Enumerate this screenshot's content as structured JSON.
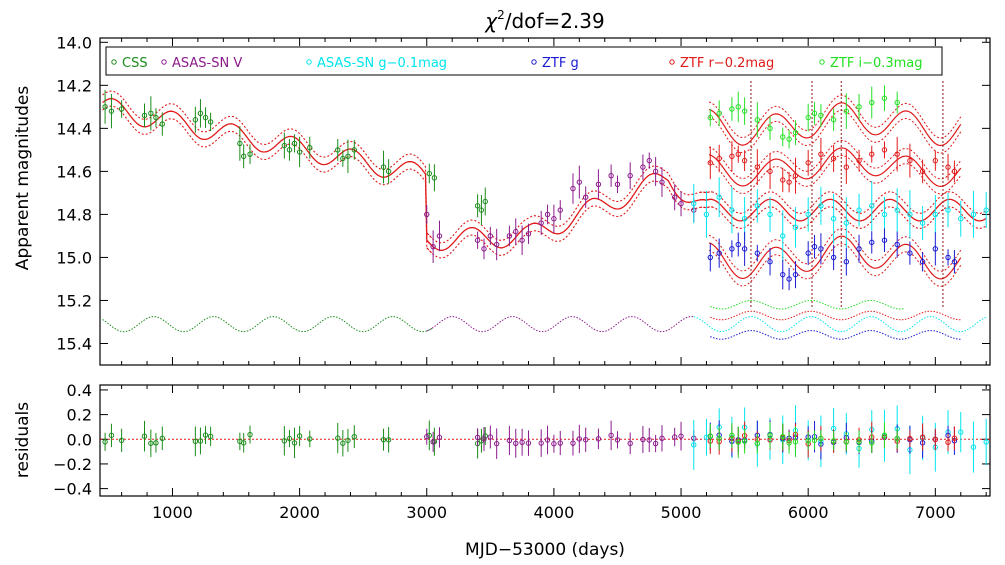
{
  "chart_data": [
    {
      "type": "scatter",
      "title_text": "/dof=2.39",
      "title_symbol": "χ",
      "title_sup": "2",
      "xlabel": "MJD−53000 (days)",
      "ylabel": "Apparent magnitudes",
      "xlim": [
        430,
        7430
      ],
      "ylim": [
        15.5,
        13.98
      ],
      "y_inverted": true,
      "xticks": [
        "1000",
        "2000",
        "3000",
        "4000",
        "5000",
        "6000",
        "7000"
      ],
      "xtick_values": [
        1000,
        2000,
        3000,
        4000,
        5000,
        6000,
        7000
      ],
      "yticks": [
        "14.0",
        "14.2",
        "14.4",
        "14.6",
        "14.8",
        "15.0",
        "15.2",
        "15.4"
      ],
      "ytick_values": [
        14.0,
        14.2,
        14.4,
        14.6,
        14.8,
        15.0,
        15.2,
        15.4
      ],
      "legend_position": "top",
      "series": [
        {
          "name": "CSS",
          "color": "#1a8c1a",
          "points": [
            [
              470,
              14.3
            ],
            [
              520,
              14.32
            ],
            [
              600,
              14.31
            ],
            [
              780,
              14.34
            ],
            [
              830,
              14.33
            ],
            [
              870,
              14.35
            ],
            [
              920,
              14.38
            ],
            [
              1180,
              14.36
            ],
            [
              1220,
              14.33
            ],
            [
              1260,
              14.35
            ],
            [
              1300,
              14.37
            ],
            [
              1530,
              14.47
            ],
            [
              1560,
              14.53
            ],
            [
              1610,
              14.52
            ],
            [
              1880,
              14.48
            ],
            [
              1920,
              14.5
            ],
            [
              1960,
              14.47
            ],
            [
              2000,
              14.51
            ],
            [
              2080,
              14.49
            ],
            [
              2300,
              14.5
            ],
            [
              2340,
              14.54
            ],
            [
              2380,
              14.53
            ],
            [
              2430,
              14.5
            ],
            [
              2660,
              14.58
            ],
            [
              2700,
              14.6
            ],
            [
              3020,
              14.61
            ],
            [
              3060,
              14.63
            ],
            [
              3400,
              14.76
            ],
            [
              3430,
              14.78
            ],
            [
              3460,
              14.74
            ]
          ]
        },
        {
          "name": "ASAS-SN V",
          "color": "#8b1a8b",
          "points": [
            [
              3000,
              14.8
            ],
            [
              3050,
              14.95
            ],
            [
              3100,
              14.9
            ],
            [
              3400,
              14.92
            ],
            [
              3450,
              14.96
            ],
            [
              3500,
              14.9
            ],
            [
              3550,
              14.94
            ],
            [
              3650,
              14.9
            ],
            [
              3700,
              14.88
            ],
            [
              3750,
              14.92
            ],
            [
              3800,
              14.89
            ],
            [
              3900,
              14.84
            ],
            [
              3950,
              14.8
            ],
            [
              4000,
              14.82
            ],
            [
              4050,
              14.78
            ],
            [
              4150,
              14.68
            ],
            [
              4200,
              14.65
            ],
            [
              4250,
              14.72
            ],
            [
              4350,
              14.66
            ],
            [
              4450,
              14.62
            ],
            [
              4500,
              14.66
            ],
            [
              4600,
              14.62
            ],
            [
              4700,
              14.58
            ],
            [
              4750,
              14.55
            ],
            [
              4800,
              14.6
            ],
            [
              4850,
              14.65
            ],
            [
              4950,
              14.72
            ],
            [
              5000,
              14.75
            ],
            [
              5100,
              14.78
            ]
          ]
        },
        {
          "name": "ASAS-SN g−0.1mag",
          "color": "#00e5ee",
          "points": [
            [
              5100,
              14.75
            ],
            [
              5200,
              14.8
            ],
            [
              5300,
              14.72
            ],
            [
              5400,
              14.78
            ],
            [
              5500,
              14.82
            ],
            [
              5600,
              14.76
            ],
            [
              5700,
              14.8
            ],
            [
              5800,
              14.9
            ],
            [
              5900,
              14.86
            ],
            [
              6000,
              14.8
            ],
            [
              6100,
              14.76
            ],
            [
              6200,
              14.82
            ],
            [
              6300,
              14.84
            ],
            [
              6400,
              14.78
            ],
            [
              6500,
              14.76
            ],
            [
              6600,
              14.8
            ],
            [
              6700,
              14.78
            ],
            [
              6800,
              14.8
            ],
            [
              6900,
              14.84
            ],
            [
              7000,
              14.8
            ],
            [
              7100,
              14.78
            ],
            [
              7200,
              14.82
            ],
            [
              7300,
              14.8
            ],
            [
              7400,
              14.78
            ]
          ]
        },
        {
          "name": "ZTF g",
          "color": "#1a1ad4",
          "points": [
            [
              5230,
              15.0
            ],
            [
              5300,
              14.98
            ],
            [
              5400,
              14.96
            ],
            [
              5450,
              14.94
            ],
            [
              5500,
              14.96
            ],
            [
              5600,
              14.98
            ],
            [
              5700,
              15.02
            ],
            [
              5800,
              15.08
            ],
            [
              5850,
              15.1
            ],
            [
              5900,
              15.08
            ],
            [
              6000,
              14.98
            ],
            [
              6050,
              14.95
            ],
            [
              6100,
              14.96
            ],
            [
              6200,
              15.0
            ],
            [
              6300,
              15.02
            ],
            [
              6400,
              14.96
            ],
            [
              6500,
              14.93
            ],
            [
              6600,
              14.92
            ],
            [
              6700,
              14.94
            ],
            [
              6800,
              14.98
            ],
            [
              6900,
              15.02
            ],
            [
              7000,
              14.96
            ],
            [
              7100,
              15.0
            ],
            [
              7150,
              15.02
            ]
          ]
        },
        {
          "name": "ZTF r−0.2mag",
          "color": "#e01a1a",
          "points": [
            [
              5230,
              14.56
            ],
            [
              5300,
              14.54
            ],
            [
              5400,
              14.53
            ],
            [
              5450,
              14.52
            ],
            [
              5500,
              14.55
            ],
            [
              5600,
              14.58
            ],
            [
              5700,
              14.6
            ],
            [
              5800,
              14.64
            ],
            [
              5850,
              14.65
            ],
            [
              5900,
              14.62
            ],
            [
              6000,
              14.56
            ],
            [
              6100,
              14.52
            ],
            [
              6200,
              14.54
            ],
            [
              6300,
              14.58
            ],
            [
              6400,
              14.55
            ],
            [
              6500,
              14.52
            ],
            [
              6600,
              14.5
            ],
            [
              6700,
              14.52
            ],
            [
              6800,
              14.55
            ],
            [
              6900,
              14.6
            ],
            [
              7000,
              14.55
            ],
            [
              7100,
              14.58
            ],
            [
              7150,
              14.6
            ]
          ]
        },
        {
          "name": "ZTF i−0.3mag",
          "color": "#22e022",
          "points": [
            [
              5230,
              14.35
            ],
            [
              5300,
              14.33
            ],
            [
              5400,
              14.31
            ],
            [
              5450,
              14.3
            ],
            [
              5500,
              14.32
            ],
            [
              5600,
              14.36
            ],
            [
              5700,
              14.4
            ],
            [
              5800,
              14.44
            ],
            [
              5850,
              14.45
            ],
            [
              5900,
              14.42
            ],
            [
              6000,
              14.35
            ],
            [
              6050,
              14.33
            ],
            [
              6100,
              14.34
            ],
            [
              6200,
              14.36
            ],
            [
              6300,
              14.32
            ],
            [
              6400,
              14.3
            ],
            [
              6500,
              14.28
            ],
            [
              6600,
              14.26
            ],
            [
              6700,
              14.28
            ]
          ]
        }
      ]
    },
    {
      "type": "scatter",
      "xlabel": "MJD−53000 (days)",
      "ylabel": "residuals",
      "xlim": [
        430,
        7430
      ],
      "ylim": [
        -0.46,
        0.44
      ],
      "xticks": [
        "1000",
        "2000",
        "3000",
        "4000",
        "5000",
        "6000",
        "7000"
      ],
      "xtick_values": [
        1000,
        2000,
        3000,
        4000,
        5000,
        6000,
        7000
      ],
      "yticks": [
        "0.4",
        "0.2",
        "0.0",
        "−0.2",
        "−0.4"
      ],
      "ytick_values": [
        0.4,
        0.2,
        0.0,
        -0.2,
        -0.4
      ]
    }
  ]
}
